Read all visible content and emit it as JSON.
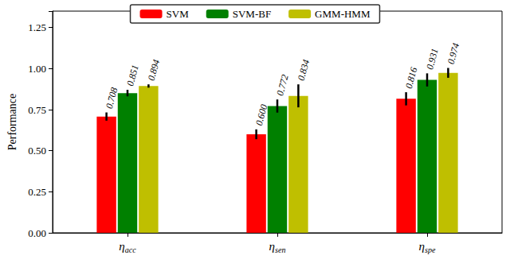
{
  "chart_data": {
    "type": "bar",
    "categories": [
      "ηacc",
      "ηsen",
      "ηspe"
    ],
    "y_label": "Performance",
    "ylim": [
      0,
      1.35
    ],
    "yticks": [
      {
        "value": 0,
        "label": "0.00"
      },
      {
        "value": 0.25,
        "label": "0.25"
      },
      {
        "value": 0.5,
        "label": "0.50"
      },
      {
        "value": 0.75,
        "label": "0.75"
      },
      {
        "value": 1,
        "label": "1.00"
      },
      {
        "value": 1.25,
        "label": "1.25"
      }
    ],
    "grid": false,
    "legend": "top",
    "data_labels": true,
    "series": [
      {
        "name": "SVM",
        "color": "#ff0000",
        "values": [
          0.708,
          0.6,
          0.816
        ],
        "value_labels": [
          "0.708",
          "0.600",
          "0.816"
        ],
        "errors": [
          0.025,
          0.03,
          0.04
        ]
      },
      {
        "name": "SVM-BF",
        "color": "#008000",
        "values": [
          0.851,
          0.772,
          0.931
        ],
        "value_labels": [
          "0.851",
          "0.772",
          "0.931"
        ],
        "errors": [
          0.02,
          0.04,
          0.04
        ]
      },
      {
        "name": "GMM-HMM",
        "color": "#bfbf00",
        "values": [
          0.894,
          0.834,
          0.974
        ],
        "value_labels": [
          "0.894",
          "0.834",
          "0.974"
        ],
        "errors": [
          0.01,
          0.07,
          0.03
        ]
      }
    ]
  }
}
